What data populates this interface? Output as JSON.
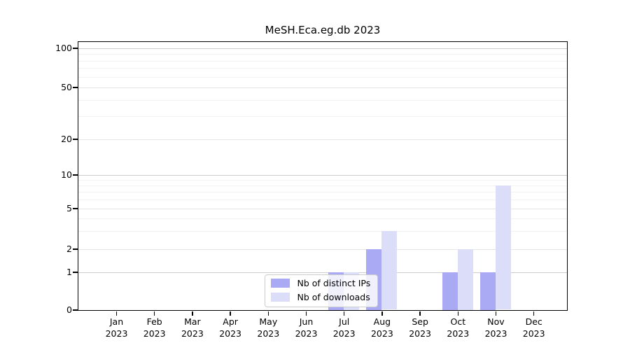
{
  "chart_data": {
    "type": "bar",
    "title": "MeSH.Eca.eg.db 2023",
    "categories": [
      "Jan",
      "Feb",
      "Mar",
      "Apr",
      "May",
      "Jun",
      "Jul",
      "Aug",
      "Sep",
      "Oct",
      "Nov",
      "Dec"
    ],
    "category_year": "2023",
    "series": [
      {
        "name": "Nb of distinct IPs",
        "key": "distinct-ips",
        "color": "#a9aaf3",
        "values": [
          0,
          0,
          0,
          0,
          0,
          0,
          1,
          2,
          0,
          1,
          1,
          0
        ]
      },
      {
        "name": "Nb of downloads",
        "key": "downloads",
        "color": "#dcddf8",
        "values": [
          0,
          0,
          0,
          0,
          0,
          0,
          1,
          3,
          0,
          2,
          8,
          0
        ]
      }
    ],
    "y_axis": {
      "ticks": [
        0,
        1,
        2,
        5,
        10,
        20,
        50,
        100
      ],
      "minor_gridlines": [
        3,
        4,
        6,
        7,
        8,
        9,
        30,
        40,
        60,
        70,
        80,
        90
      ],
      "scale": "log-like",
      "range": [
        0,
        100
      ]
    },
    "grid": "horizontal",
    "legend_position": "inside-bottom-center"
  },
  "colors": {
    "bar_distinct_ips": "#a9aaf3",
    "bar_downloads": "#dcddf8",
    "grid_decade": "#cccccc",
    "grid_major": "#e4e4e4",
    "grid_minor": "#f2f2f2",
    "axis": "#000000",
    "background": "#ffffff"
  }
}
